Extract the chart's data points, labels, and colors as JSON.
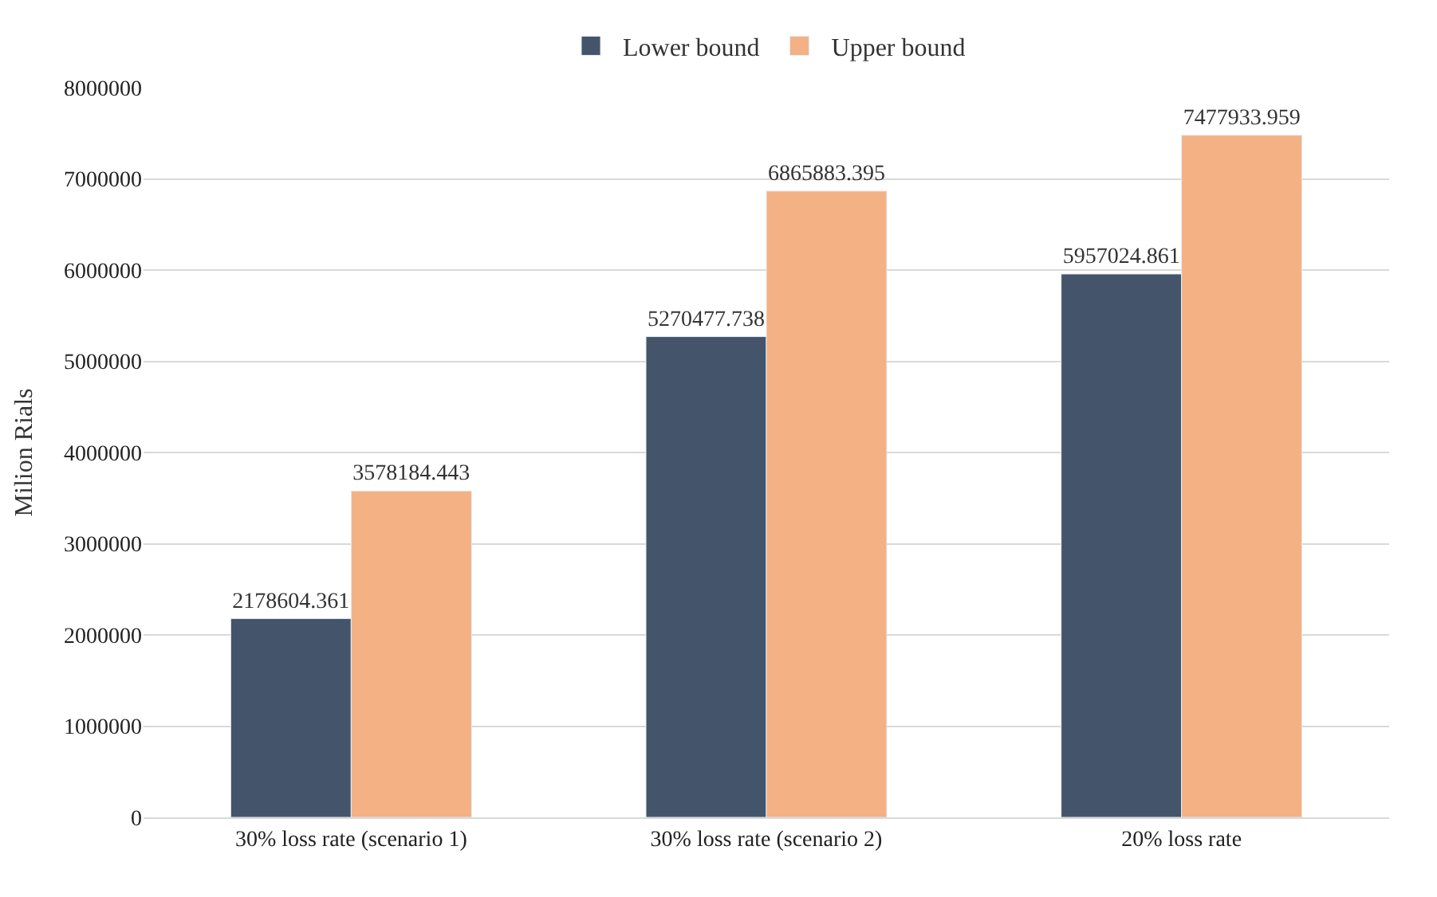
{
  "chart_data": {
    "type": "bar",
    "ylabel": "Milion Rials",
    "categories": [
      "30% loss rate (scenario 1)",
      "30% loss rate (scenario 2)",
      "20% loss rate"
    ],
    "series": [
      {
        "name": "Lower bound",
        "color": "#44546a",
        "values": [
          2178604.361,
          5270477.738,
          5957024.861
        ]
      },
      {
        "name": "Upper bound",
        "color": "#f4b183",
        "values": [
          3578184.443,
          6865883.395,
          7477933.959
        ]
      }
    ],
    "ylim": [
      0,
      8000000
    ],
    "yticks": [
      0,
      1000000,
      2000000,
      3000000,
      4000000,
      5000000,
      6000000,
      7000000,
      8000000
    ],
    "grid": "y",
    "legend": "top",
    "data_labels": true
  }
}
